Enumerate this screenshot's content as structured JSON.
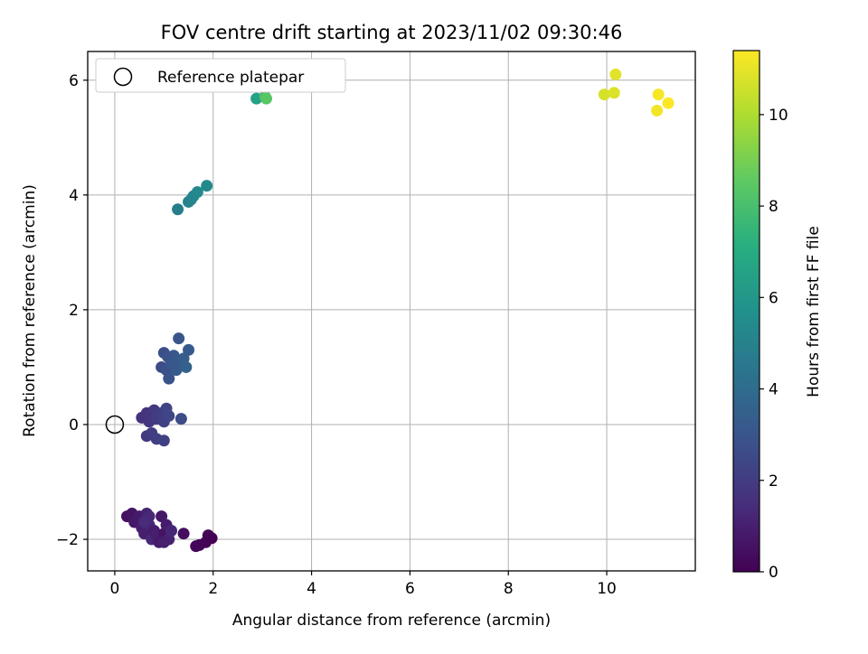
{
  "chart_data": {
    "type": "scatter",
    "title": "FOV centre drift starting at 2023/11/02 09:30:46",
    "xlabel": "Angular distance from reference (arcmin)",
    "ylabel": "Rotation from reference (arcmin)",
    "xlim": [
      -0.55,
      11.8
    ],
    "ylim": [
      -2.55,
      6.5
    ],
    "xticks": [
      0,
      2,
      4,
      6,
      8,
      10
    ],
    "yticks": [
      -2,
      0,
      2,
      4,
      6
    ],
    "grid": true,
    "legend": {
      "placement": "top-left",
      "label": "Reference platepar"
    },
    "reference_point": {
      "x": 0,
      "y": 0
    },
    "colorbar": {
      "label": "Hours from first FF file",
      "range": [
        0,
        11.4
      ],
      "ticks": [
        0,
        2,
        4,
        6,
        8,
        10
      ],
      "colormap": "viridis"
    },
    "points": [
      {
        "x": 0.25,
        "y": -1.6,
        "c": 0.5
      },
      {
        "x": 0.35,
        "y": -1.55,
        "c": 0.6
      },
      {
        "x": 0.4,
        "y": -1.7,
        "c": 0.7
      },
      {
        "x": 0.5,
        "y": -1.6,
        "c": 0.8
      },
      {
        "x": 0.55,
        "y": -1.8,
        "c": 0.9
      },
      {
        "x": 0.6,
        "y": -1.9,
        "c": 1.0
      },
      {
        "x": 0.65,
        "y": -1.55,
        "c": 1.1
      },
      {
        "x": 0.7,
        "y": -1.75,
        "c": 1.2
      },
      {
        "x": 0.75,
        "y": -2.0,
        "c": 1.3
      },
      {
        "x": 0.8,
        "y": -1.85,
        "c": 0.9
      },
      {
        "x": 0.85,
        "y": -1.95,
        "c": 1.0
      },
      {
        "x": 0.9,
        "y": -2.05,
        "c": 0.8
      },
      {
        "x": 0.95,
        "y": -1.6,
        "c": 0.7
      },
      {
        "x": 1.0,
        "y": -1.9,
        "c": 0.6
      },
      {
        "x": 1.05,
        "y": -1.75,
        "c": 0.9
      },
      {
        "x": 1.1,
        "y": -2.0,
        "c": 1.1
      },
      {
        "x": 1.15,
        "y": -1.85,
        "c": 1.2
      },
      {
        "x": 1.0,
        "y": -2.05,
        "c": 1.0
      },
      {
        "x": 0.7,
        "y": -1.6,
        "c": 1.3
      },
      {
        "x": 0.6,
        "y": -1.7,
        "c": 1.4
      },
      {
        "x": 1.4,
        "y": -1.9,
        "c": 0.4
      },
      {
        "x": 1.65,
        "y": -2.12,
        "c": 0.2
      },
      {
        "x": 1.72,
        "y": -2.1,
        "c": 0.15
      },
      {
        "x": 1.85,
        "y": -2.05,
        "c": 0.1
      },
      {
        "x": 1.9,
        "y": -1.93,
        "c": 0.05
      },
      {
        "x": 1.97,
        "y": -1.98,
        "c": 0.0
      },
      {
        "x": 0.55,
        "y": 0.12,
        "c": 1.6
      },
      {
        "x": 0.65,
        "y": 0.2,
        "c": 1.7
      },
      {
        "x": 0.7,
        "y": 0.05,
        "c": 1.8
      },
      {
        "x": 0.8,
        "y": 0.25,
        "c": 1.9
      },
      {
        "x": 0.85,
        "y": 0.1,
        "c": 2.0
      },
      {
        "x": 0.95,
        "y": 0.2,
        "c": 2.1
      },
      {
        "x": 1.0,
        "y": 0.05,
        "c": 2.2
      },
      {
        "x": 1.05,
        "y": 0.28,
        "c": 2.3
      },
      {
        "x": 1.1,
        "y": 0.15,
        "c": 2.4
      },
      {
        "x": 0.65,
        "y": -0.2,
        "c": 1.9
      },
      {
        "x": 0.75,
        "y": -0.15,
        "c": 2.0
      },
      {
        "x": 0.85,
        "y": -0.25,
        "c": 2.1
      },
      {
        "x": 1.0,
        "y": -0.28,
        "c": 2.2
      },
      {
        "x": 1.35,
        "y": 0.1,
        "c": 2.6
      },
      {
        "x": 0.95,
        "y": 1.0,
        "c": 2.6
      },
      {
        "x": 1.0,
        "y": 1.25,
        "c": 2.7
      },
      {
        "x": 1.05,
        "y": 0.95,
        "c": 2.8
      },
      {
        "x": 1.1,
        "y": 0.8,
        "c": 2.9
      },
      {
        "x": 1.15,
        "y": 1.1,
        "c": 3.0
      },
      {
        "x": 1.2,
        "y": 1.2,
        "c": 3.1
      },
      {
        "x": 1.25,
        "y": 0.95,
        "c": 3.2
      },
      {
        "x": 1.3,
        "y": 1.5,
        "c": 3.0
      },
      {
        "x": 1.35,
        "y": 1.05,
        "c": 3.3
      },
      {
        "x": 1.4,
        "y": 1.15,
        "c": 3.4
      },
      {
        "x": 1.45,
        "y": 1.0,
        "c": 3.5
      },
      {
        "x": 1.5,
        "y": 1.3,
        "c": 3.2
      },
      {
        "x": 1.08,
        "y": 1.18,
        "c": 2.9
      },
      {
        "x": 1.18,
        "y": 1.05,
        "c": 3.1
      },
      {
        "x": 1.28,
        "y": 3.75,
        "c": 4.8
      },
      {
        "x": 1.5,
        "y": 3.88,
        "c": 5.0
      },
      {
        "x": 1.55,
        "y": 3.92,
        "c": 5.1
      },
      {
        "x": 1.6,
        "y": 3.98,
        "c": 5.2
      },
      {
        "x": 1.68,
        "y": 4.05,
        "c": 5.3
      },
      {
        "x": 1.87,
        "y": 4.16,
        "c": 5.4
      },
      {
        "x": 2.88,
        "y": 5.68,
        "c": 6.5
      },
      {
        "x": 3.05,
        "y": 5.72,
        "c": 7.8
      },
      {
        "x": 3.08,
        "y": 5.68,
        "c": 8.4
      },
      {
        "x": 9.95,
        "y": 5.75,
        "c": 10.7
      },
      {
        "x": 10.15,
        "y": 5.78,
        "c": 10.8
      },
      {
        "x": 10.18,
        "y": 6.1,
        "c": 10.9
      },
      {
        "x": 11.02,
        "y": 5.47,
        "c": 11.2
      },
      {
        "x": 11.05,
        "y": 5.75,
        "c": 11.3
      },
      {
        "x": 11.25,
        "y": 5.6,
        "c": 11.4
      }
    ]
  }
}
